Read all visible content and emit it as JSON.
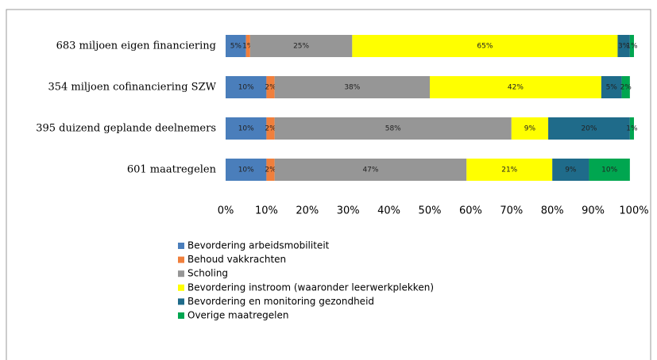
{
  "chart_data": {
    "type": "stacked_bar_horizontal",
    "categories": [
      "683 miljoen eigen financiering",
      "354 miljoen cofinanciering SZW",
      "395 duizend geplande deelnemers",
      "601 maatregelen"
    ],
    "series": [
      {
        "name": "Bevordering arbeidsmobiliteit",
        "color": "#4a7ebb",
        "values": [
          5,
          10,
          10,
          10
        ],
        "value_labels": [
          "5%",
          "10%",
          "10%",
          "10%"
        ]
      },
      {
        "name": "Behoud vakkrachten",
        "color": "#f07f3c",
        "values": [
          1,
          2,
          2,
          2
        ],
        "value_labels": [
          "1%",
          "2%",
          "2%",
          "2%"
        ]
      },
      {
        "name": "Scholing",
        "color": "#969696",
        "values": [
          25,
          38,
          58,
          47
        ],
        "value_labels": [
          "25%",
          "38%",
          "58%",
          "47%"
        ]
      },
      {
        "name": "Bevordering instroom (waaronder leerwerkplekken)",
        "color": "#ffff00",
        "values": [
          65,
          42,
          9,
          21
        ],
        "value_labels": [
          "65%",
          "42%",
          "9%",
          "21%"
        ]
      },
      {
        "name": "Bevordering en monitoring gezondheid",
        "color": "#1f6b8a",
        "values": [
          3,
          5,
          20,
          9
        ],
        "value_labels": [
          "3%",
          "5%",
          "20%",
          "9%"
        ]
      },
      {
        "name": "Overige maatregelen",
        "color": "#00a650",
        "values": [
          1,
          2,
          1,
          10
        ],
        "value_labels": [
          "1%",
          "2%",
          "1%",
          "10%"
        ]
      }
    ],
    "xlim": [
      0,
      100
    ],
    "xticks": [
      {
        "value": 0,
        "label": "0%"
      },
      {
        "value": 10,
        "label": "10%"
      },
      {
        "value": 20,
        "label": "20%"
      },
      {
        "value": 30,
        "label": "30%"
      },
      {
        "value": 40,
        "label": "40%"
      },
      {
        "value": 50,
        "label": "50%"
      },
      {
        "value": 60,
        "label": "60%"
      },
      {
        "value": 70,
        "label": "70%"
      },
      {
        "value": 80,
        "label": "80%"
      },
      {
        "value": 90,
        "label": "90%"
      },
      {
        "value": 100,
        "label": "100%"
      }
    ],
    "legend": "bottom"
  }
}
